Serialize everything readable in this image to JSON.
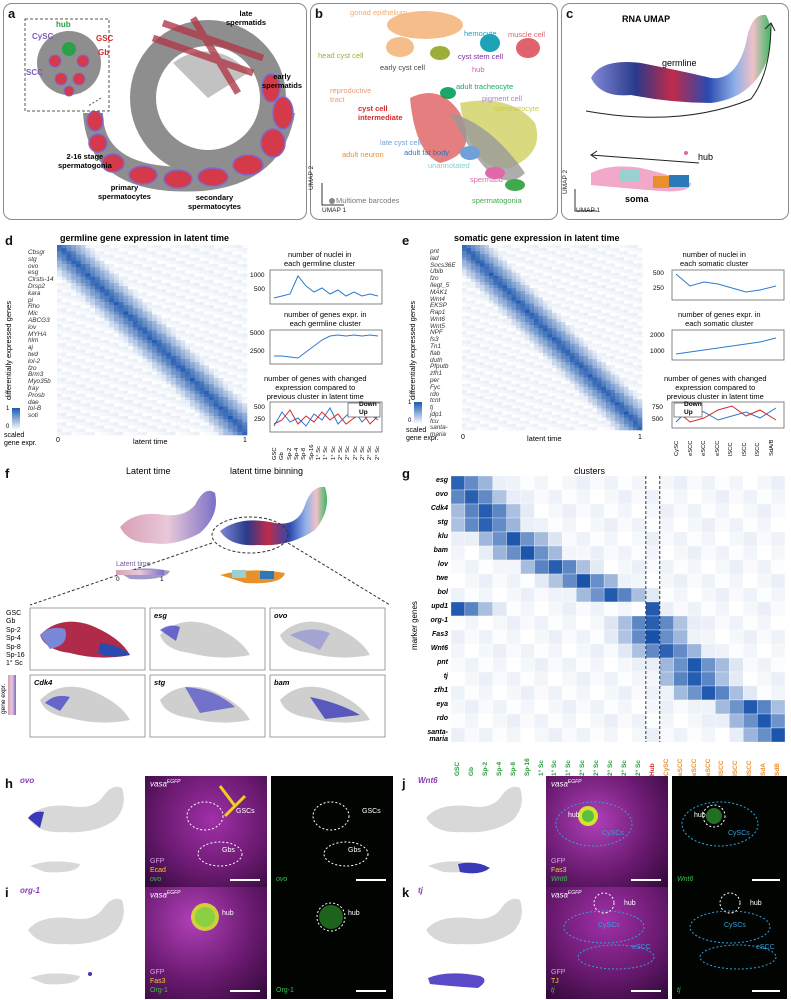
{
  "panel_labels": [
    "a",
    "b",
    "c",
    "d",
    "e",
    "f",
    "g",
    "h",
    "i",
    "j",
    "k"
  ],
  "panel_a": {
    "hub": "hub",
    "gsc": "GSC",
    "cysc": "CySC",
    "gb": "Gb",
    "scc": "SCC",
    "late": "late\nspermatids",
    "early": "early\nspermatids",
    "sg": "2-16 stage\nspermatogonia",
    "ps": "primary\nspermatocytes",
    "ss": "secondary\nspermatocytes"
  },
  "panel_b": {
    "labels": [
      {
        "text": "gonad epithelium",
        "color": "#f4a86b"
      },
      {
        "text": "hemocyte",
        "color": "#1da3b8"
      },
      {
        "text": "muscle cell",
        "color": "#e0626d"
      },
      {
        "text": "head cyst cell",
        "color": "#9cae38"
      },
      {
        "text": "early cyst cell",
        "color": "#444444"
      },
      {
        "text": "cyst stem cell",
        "color": "#7b2aa0"
      },
      {
        "text": "hub",
        "color": "#d45ac5"
      },
      {
        "text": "adult tracheocyte",
        "color": "#1aa86a"
      },
      {
        "text": "reproductive\ntract",
        "color": "#e79a82"
      },
      {
        "text": "pigment cell",
        "color": "#a97fd0"
      },
      {
        "text": "spermatocyte",
        "color": "#c9ca4a"
      },
      {
        "text": "cyst cell\nintermediate",
        "color": "#d42a2a"
      },
      {
        "text": "late cyst cell",
        "color": "#6fa1d8"
      },
      {
        "text": "adult fat body",
        "color": "#2e74c0"
      },
      {
        "text": "adult neuron",
        "color": "#e8902c"
      },
      {
        "text": "unannotated",
        "color": "#7fd0d0"
      },
      {
        "text": "spermatid",
        "color": "#e068a8"
      },
      {
        "text": "spermatogonia",
        "color": "#42a84e"
      }
    ],
    "multiome": "Multiome barcodes",
    "umap1": "UMAP 1",
    "umap2": "UMAP 2"
  },
  "panel_c": {
    "title": "RNA UMAP",
    "germline": "germline",
    "hub": "hub",
    "soma": "soma",
    "umap1": "UMAP 1",
    "umap2": "UMAP 2"
  },
  "panel_d": {
    "title": "germline gene expression in latent time",
    "ylabel": "differentially expressed genes",
    "xlabel": "latent time",
    "x0": "0",
    "x1": "1",
    "scale": "scaled\ngene expr.",
    "s1": "1",
    "s0": "0",
    "genes": [
      "Cbsgr",
      "stg",
      "ovo",
      "esg",
      "Clrsts-14",
      "Drsp2",
      "kara",
      "pi",
      "Rho",
      "Mic",
      "ABCG3",
      "lov",
      "MYHA",
      "hlm",
      "aj",
      "twd",
      "lol-2",
      "fzo",
      "Brm3",
      "Myo35b",
      "fray",
      "Prosb",
      "dae",
      "tol-B",
      "soti"
    ],
    "sub1": "number of nuclei in\neach germline cluster",
    "sub1_ticks": [
      "1000",
      "500"
    ],
    "sub2": "number of genes expr. in\neach germline cluster",
    "sub2_ticks": [
      "5000",
      "2500"
    ],
    "sub3": "number of genes with changed\nexpression compared to\nprevious cluster in latent time",
    "sub3_ticks": [
      "500",
      "250"
    ],
    "down": "Down",
    "up": "Up",
    "clusters": [
      "GSC",
      "Gb",
      "Sp-2",
      "Sp-4",
      "Sp-8",
      "Sp-16",
      "1° Sc",
      "1° Sc",
      "1° Sc",
      "2° Sc",
      "2° Sc",
      "2° Sc",
      "2° Sc",
      "2° Sc",
      "2° Sc"
    ]
  },
  "panel_e": {
    "title": "somatic gene expression in latent time",
    "ylabel": "differentially expressed genes",
    "xlabel": "latent time",
    "x0": "0",
    "x1": "1",
    "scale": "scaled\ngene expr.",
    "s1": "1",
    "s0": "0",
    "genes": [
      "pnt",
      "lad",
      "Socs36E",
      "Ubib",
      "fzo",
      "Ilegt_5",
      "MAK1",
      "Wnt4",
      "EKSP",
      "Rap1",
      "Wnt6",
      "Wnt5",
      "NPF",
      "fs3",
      "Tn1",
      "flab",
      "duth",
      "Pfputb",
      "zfh1",
      "per",
      "Fyc",
      "rdo",
      "tcnt",
      "tj",
      "jdp1",
      "fcu",
      "santa-",
      "maria"
    ],
    "sub1": "number of nuclei in\neach somatic cluster",
    "sub1_ticks": [
      "500",
      "250"
    ],
    "sub2": "number of genes expr. in\neach somatic cluster",
    "sub2_ticks": [
      "2000",
      "1000"
    ],
    "sub3": "number of genes with changed\nexpression compared to\nprevious cluster in latent time",
    "sub3_ticks": [
      "750",
      "500"
    ],
    "down": "Down",
    "up": "Up",
    "clusters": [
      "CySC",
      "eSCC",
      "eSCC",
      "eSCC",
      "lSCC",
      "lSCC",
      "lSCC",
      "SdA/B"
    ]
  },
  "panel_f": {
    "t_latent": "Latent time",
    "t_binning": "latent time binning",
    "lt_label": "Latent time",
    "lt0": "0",
    "lt1": "1",
    "bins": [
      "GSC",
      "Gb",
      "Sp-2",
      "Sp-4",
      "Sp-8",
      "Sp-16",
      "1° Sc"
    ],
    "genes": [
      "esg",
      "ovo",
      "Cdk4",
      "stg",
      "bam"
    ],
    "gene_expr": "gene expr."
  },
  "panel_g": {
    "title": "clusters",
    "ylabel": "marker genes",
    "rows": [
      "esg",
      "ovo",
      "Cdk4",
      "stg",
      "klu",
      "bam",
      "lov",
      "twe",
      "bol",
      "upd1",
      "org-1",
      "Fas3",
      "Wnt6",
      "pnt",
      "tj",
      "zfh1",
      "eya",
      "rdo",
      "santa-\nmaria"
    ],
    "cols": [
      {
        "t": "GSC",
        "c": "#2a9a3c"
      },
      {
        "t": "Gb",
        "c": "#2a9a3c"
      },
      {
        "t": "Sp-2",
        "c": "#2a9a3c"
      },
      {
        "t": "Sp-4",
        "c": "#2a9a3c"
      },
      {
        "t": "Sp-8",
        "c": "#2a9a3c"
      },
      {
        "t": "Sp-16",
        "c": "#2a9a3c"
      },
      {
        "t": "1° Sc",
        "c": "#2a9a3c"
      },
      {
        "t": "1° Sc",
        "c": "#2a9a3c"
      },
      {
        "t": "1° Sc",
        "c": "#2a9a3c"
      },
      {
        "t": "2° Sc",
        "c": "#2a9a3c"
      },
      {
        "t": "2° Sc",
        "c": "#2a9a3c"
      },
      {
        "t": "2° Sc",
        "c": "#2a9a3c"
      },
      {
        "t": "2° Sc",
        "c": "#2a9a3c"
      },
      {
        "t": "2° Sc",
        "c": "#2a9a3c"
      },
      {
        "t": "Hub",
        "c": "#d42a2a"
      },
      {
        "t": "CySC",
        "c": "#e8902c"
      },
      {
        "t": "eSCC",
        "c": "#e8902c"
      },
      {
        "t": "eSCC",
        "c": "#e8902c"
      },
      {
        "t": "eSCC",
        "c": "#e8902c"
      },
      {
        "t": "lSCC",
        "c": "#e8902c"
      },
      {
        "t": "lSCC",
        "c": "#e8902c"
      },
      {
        "t": "lSCC",
        "c": "#e8902c"
      },
      {
        "t": "SdA",
        "c": "#e8902c"
      },
      {
        "t": "SdB",
        "c": "#e8902c"
      }
    ]
  },
  "panel_h": {
    "gene": "ovo",
    "vasa": "vasa",
    "sup": "EGFP",
    "gfp": "GFP",
    "ecad": "Ecad",
    "ovo": "ovo",
    "gscs": "GSCs",
    "gbs": "Gbs",
    "gscs2": "GSCs",
    "gbs2": "Gbs",
    "ovo2": "ovo"
  },
  "panel_i": {
    "gene": "org-1",
    "vasa": "vasa",
    "sup": "EGFP",
    "hub": "hub",
    "gfp": "GFP",
    "fas3": "Fas3",
    "org": "Org-1",
    "hub2": "hub",
    "org2": "Org-1"
  },
  "panel_j": {
    "gene": "Wnt6",
    "vasa": "vasa",
    "sup": "EGFP",
    "hub": "hub",
    "cyscs": "CySCs",
    "gfp": "GFP",
    "fas3": "Fas3",
    "wnt": "Wnt6",
    "hub2": "hub",
    "cyscs2": "CySCs",
    "wnt2": "Wnt6"
  },
  "panel_k": {
    "gene": "tj",
    "vasa": "vasa",
    "sup": "EGFP",
    "hub": "hub",
    "cyscs": "CySCs",
    "escc": "eSCC",
    "gfp": "GFP",
    "tj": "TJ",
    "tj_i": "tj",
    "hub2": "hub",
    "cyscs2": "CySCs",
    "escc2": "eSCC",
    "tj2": "tj"
  }
}
